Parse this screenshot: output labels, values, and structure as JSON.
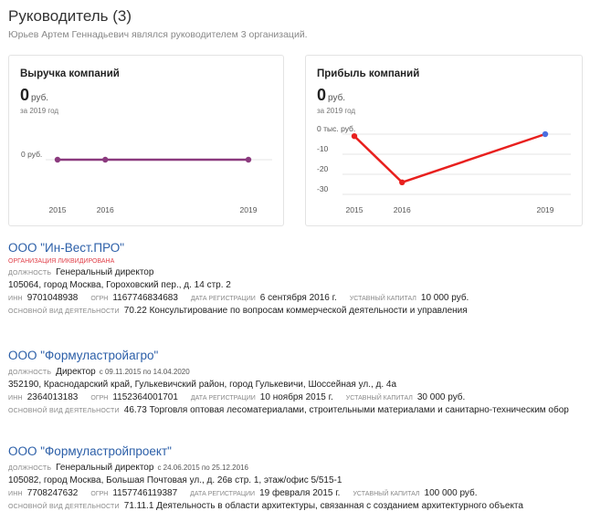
{
  "header": {
    "title": "Руководитель (3)",
    "subtitle": "Юрьев Артем Геннадьевич являлся руководителем 3 организаций."
  },
  "revenue_card": {
    "title": "Выручка компаний",
    "value": "0",
    "unit": "руб.",
    "period": "за 2019 год",
    "ytick": "0 руб.",
    "xticks": [
      "2015",
      "2016",
      "2019"
    ]
  },
  "profit_card": {
    "title": "Прибыль компаний",
    "value": "0",
    "unit": "руб.",
    "period": "за 2019 год",
    "yticks": [
      "0 тыс. руб.",
      "-10",
      "-20",
      "-30"
    ],
    "xticks": [
      "2015",
      "2016",
      "2019"
    ]
  },
  "chart_data": [
    {
      "type": "line",
      "title": "Выручка компаний",
      "x": [
        "2015",
        "2016",
        "2019"
      ],
      "series": [
        {
          "values": [
            0,
            0,
            0
          ],
          "color": "#8b3a7e"
        }
      ]
    },
    {
      "type": "line",
      "title": "Прибыль компаний",
      "x": [
        "2015",
        "2016",
        "2019"
      ],
      "ylim": [
        -30,
        0
      ],
      "series": [
        {
          "values": [
            -1,
            -24,
            0
          ],
          "color": "#e8201e"
        }
      ],
      "point_colors": [
        "#e8201e",
        "#e8201e",
        "#4b6fe0"
      ]
    }
  ],
  "orgs": [
    {
      "name": "ООО \"Ин-Вест.ПРО\"",
      "status": "организация ликвидирована",
      "position_label": "должность",
      "position": "Генеральный директор",
      "dates": "",
      "address": "105064, город Москва, Гороховский пер., д. 14 стр. 2",
      "inn_label": "инн",
      "inn": "9701048938",
      "ogrn_label": "огрн",
      "ogrn": "1167746834683",
      "reg_label": "дата регистрации",
      "reg": "6 сентября 2016 г.",
      "cap_label": "уставный капитал",
      "cap": "10 000 руб.",
      "act_label": "основной вид деятельности",
      "act": "70.22 Консультирование по вопросам коммерческой деятельности и управления"
    },
    {
      "name": "ООО \"Формуластройагро\"",
      "status": "",
      "position_label": "должность",
      "position": "Директор",
      "dates": "с 09.11.2015 по 14.04.2020",
      "address": "352190, Краснодарский край, Гулькевичский район, город Гулькевичи, Шоссейная ул., д. 4а",
      "inn_label": "инн",
      "inn": "2364013183",
      "ogrn_label": "огрн",
      "ogrn": "1152364001701",
      "reg_label": "дата регистрации",
      "reg": "10 ноября 2015 г.",
      "cap_label": "уставный капитал",
      "cap": "30 000 руб.",
      "act_label": "основной вид деятельности",
      "act": "46.73 Торговля оптовая лесоматериалами, строительными материалами и санитарно-техническим обор"
    },
    {
      "name": "ООО \"Формуластройпроект\"",
      "status": "",
      "position_label": "должность",
      "position": "Генеральный директор",
      "dates": "с 24.06.2015 по 25.12.2016",
      "address": "105082, город Москва, Большая Почтовая ул., д. 26в стр. 1, этаж/офис 5/515-1",
      "inn_label": "инн",
      "inn": "7708247632",
      "ogrn_label": "огрн",
      "ogrn": "1157746119387",
      "reg_label": "дата регистрации",
      "reg": "19 февраля 2015 г.",
      "cap_label": "уставный капитал",
      "cap": "100 000 руб.",
      "act_label": "основной вид деятельности",
      "act": "71.11.1 Деятельность в области архитектуры, связанная с созданием архитектурного объекта"
    }
  ]
}
